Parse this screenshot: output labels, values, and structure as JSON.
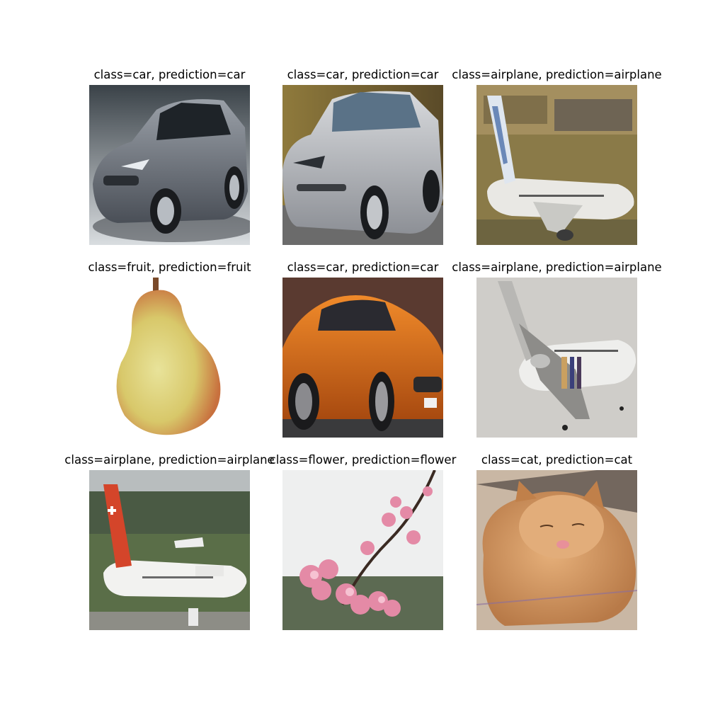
{
  "grid": {
    "cells": [
      {
        "title": "class=car, prediction=car",
        "subject": "silver-sedan-car-photo"
      },
      {
        "title": "class=car, prediction=car",
        "subject": "silver-car-photo"
      },
      {
        "title": "class=airplane, prediction=airplane",
        "subject": "airliner-on-runway-photo"
      },
      {
        "title": "class=fruit, prediction=fruit",
        "subject": "pear-photo"
      },
      {
        "title": "class=car, prediction=car",
        "subject": "orange-sports-car-photo"
      },
      {
        "title": "class=airplane, prediction=airplane",
        "subject": "airliner-in-flight-photo"
      },
      {
        "title": "class=airplane, prediction=airplane",
        "subject": "swissair-airliner-photo"
      },
      {
        "title": "class=flower, prediction=flower",
        "subject": "cherry-blossom-branch-photo"
      },
      {
        "title": "class=cat, prediction=cat",
        "subject": "orange-cat-photo"
      }
    ]
  }
}
